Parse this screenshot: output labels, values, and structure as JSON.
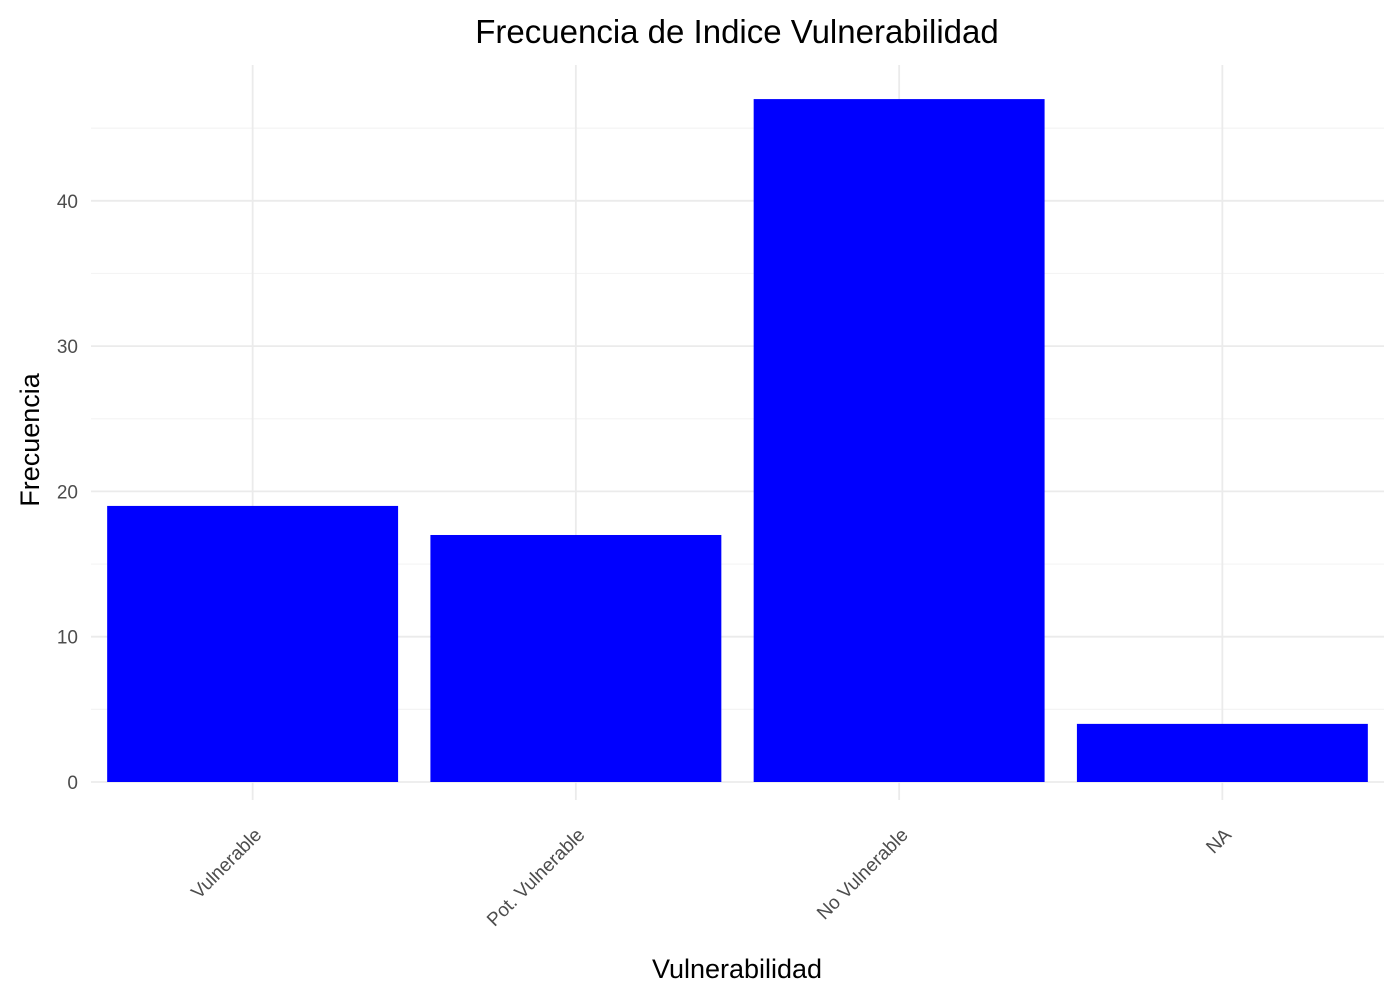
{
  "chart_data": {
    "type": "bar",
    "title": "Frecuencia de Indice Vulnerabilidad",
    "xlabel": "Vulnerabilidad",
    "ylabel": "Frecuencia",
    "categories": [
      "Vulnerable",
      "Pot. Vulnerable",
      "No Vulnerable",
      "NA"
    ],
    "values": [
      19,
      17,
      47,
      4
    ],
    "ylim": [
      0,
      50
    ],
    "y_ticks": [
      0,
      10,
      20,
      30,
      40
    ],
    "y_tick_labels": [
      "0",
      "10",
      "20",
      "30",
      "40"
    ],
    "bar_color": "#0000ff",
    "grid": true,
    "legend": "none",
    "x_tick_rotation": "45 degrees"
  }
}
